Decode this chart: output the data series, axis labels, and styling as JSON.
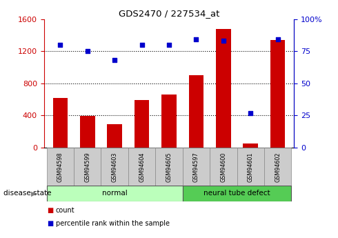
{
  "title": "GDS2470 / 227534_at",
  "samples": [
    "GSM94598",
    "GSM94599",
    "GSM94603",
    "GSM94604",
    "GSM94605",
    "GSM94597",
    "GSM94600",
    "GSM94601",
    "GSM94602"
  ],
  "counts": [
    620,
    390,
    295,
    590,
    660,
    900,
    1480,
    50,
    1340
  ],
  "percentile_ranks": [
    80,
    75,
    68,
    80,
    80,
    84,
    83,
    27,
    84
  ],
  "groups": [
    {
      "label": "normal",
      "start": 0,
      "end": 5,
      "color": "#bbffbb"
    },
    {
      "label": "neural tube defect",
      "start": 5,
      "end": 9,
      "color": "#55cc55"
    }
  ],
  "left_axis_color": "#cc0000",
  "right_axis_color": "#0000cc",
  "bar_color": "#cc0000",
  "dot_color": "#0000cc",
  "left_ylim": [
    0,
    1600
  ],
  "right_ylim": [
    0,
    100
  ],
  "left_yticks": [
    0,
    400,
    800,
    1200,
    1600
  ],
  "right_yticks": [
    0,
    25,
    50,
    75,
    100
  ],
  "grid_values": [
    400,
    800,
    1200
  ],
  "bar_width": 0.55,
  "disease_state_label": "disease state",
  "legend_items": [
    {
      "label": "count",
      "color": "#cc0000"
    },
    {
      "label": "percentile rank within the sample",
      "color": "#0000cc"
    }
  ],
  "background_color": "#ffffff",
  "tick_label_area_color": "#cccccc",
  "figsize": [
    4.9,
    3.45
  ],
  "dpi": 100
}
